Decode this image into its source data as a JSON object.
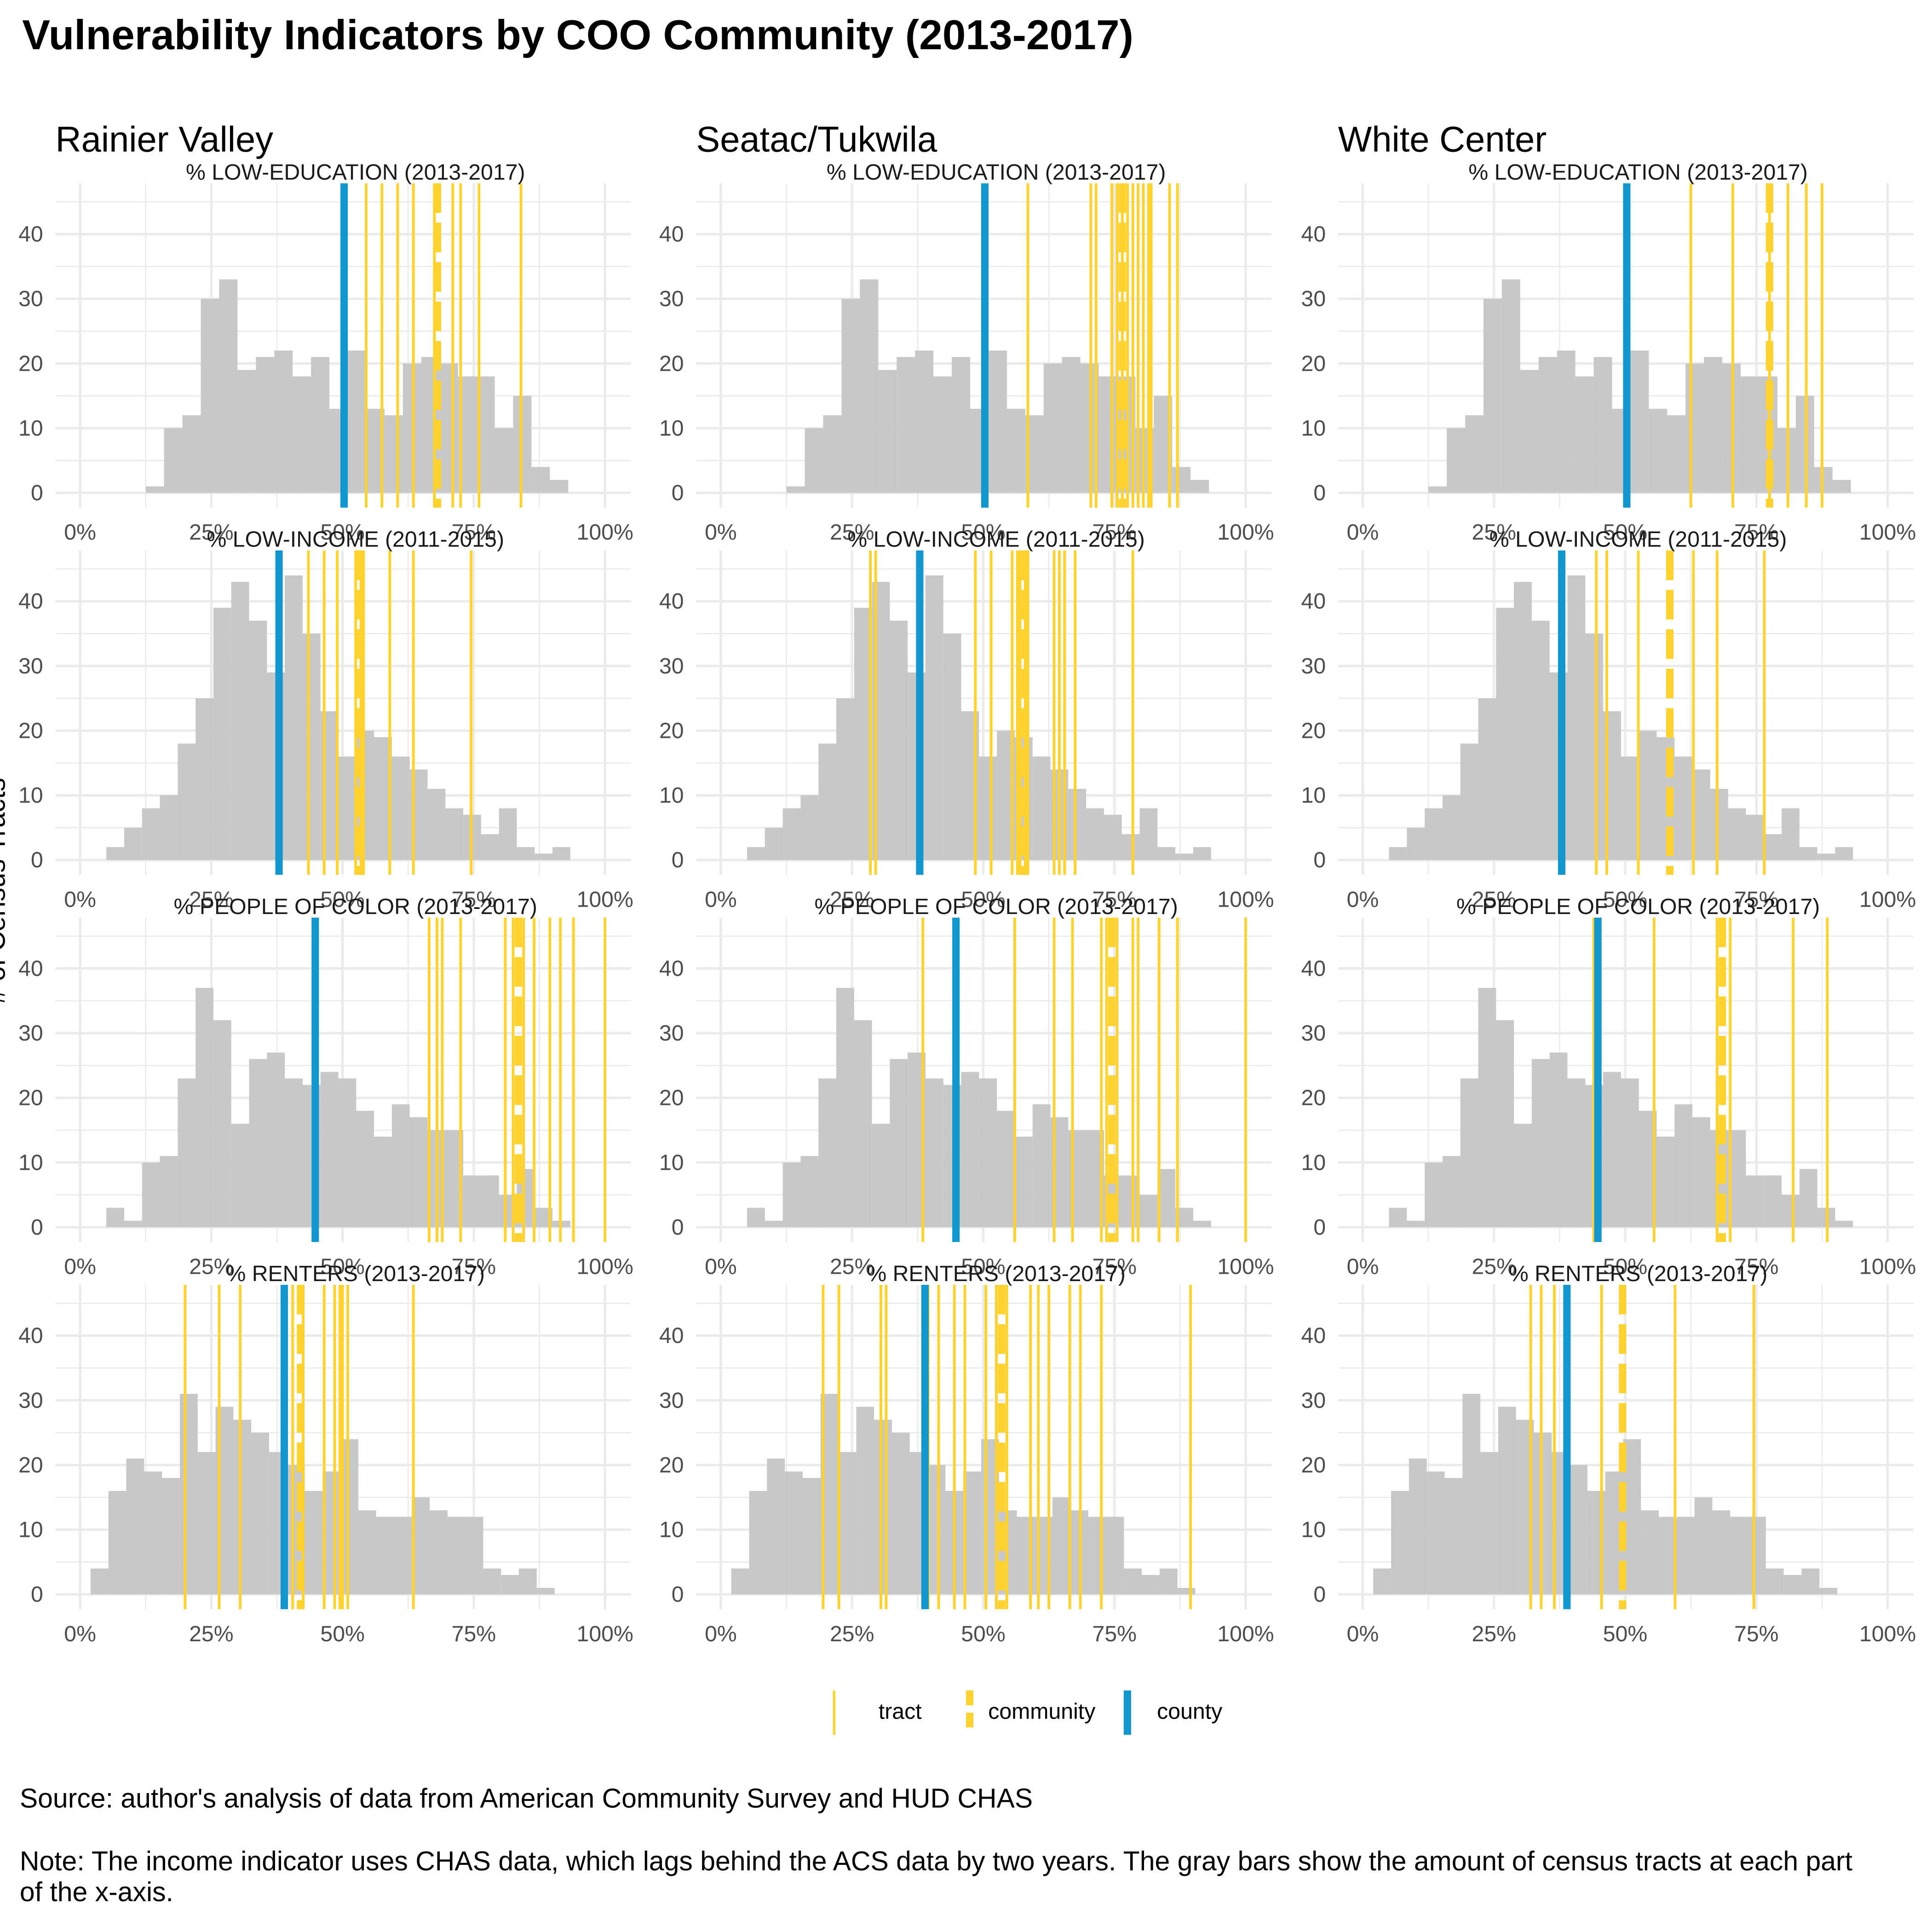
{
  "title": "Vulnerability Indicators by COO Community (2013-2017)",
  "ylabel": "# of Census Tracts",
  "communities": [
    "Rainier Valley",
    "Seatac/Tukwila",
    "White Center"
  ],
  "legend": [
    {
      "key": "tract",
      "label": "tract",
      "color": "#FFD22E"
    },
    {
      "key": "community",
      "label": "community",
      "color": "#FFD22E"
    },
    {
      "key": "county",
      "label": "county",
      "color": "#1196CF"
    }
  ],
  "colors": {
    "histogram": "#C8C8C8",
    "tract": "#FFD22E",
    "community": "#FFD22E",
    "county": "#1196CF",
    "grid": "#EBEBEB",
    "tick_text": "#4D4D4D"
  },
  "source": "Source: author's analysis of data from American Community Survey and HUD CHAS",
  "note": "Note: The income indicator uses CHAS data, which lags behind the ACS data by two years. The gray bars show the amount of census tracts at each part of the x-axis.",
  "chart_data": {
    "type": "histogram-facet-grid",
    "xlim": [
      0,
      100
    ],
    "x_ticks": [
      "0%",
      "25%",
      "50%",
      "75%",
      "100%"
    ],
    "ylim": [
      0,
      45
    ],
    "y_ticks": [
      "0",
      "10",
      "20",
      "30",
      "40"
    ],
    "grid": true,
    "legend_position": "bottom",
    "rows": [
      {
        "indicator": "% LOW-EDUCATION (2013-2017)",
        "bins": {
          "start": 12.5,
          "width": 3.5,
          "counts": [
            1,
            10,
            12,
            30,
            33,
            19,
            21,
            22,
            18,
            21,
            13,
            22,
            13,
            12,
            20,
            21,
            20,
            18,
            18,
            10,
            15,
            4,
            2
          ]
        },
        "panels": [
          {
            "community": "Rainier Valley",
            "county": 50.3,
            "community_value": 68.1,
            "tracts": [
              54.5,
              57.5,
              60.5,
              63.5,
              67.5,
              71.0,
              72.5,
              76.0,
              84.0
            ]
          },
          {
            "community": "Seatac/Tukwila",
            "county": 50.3,
            "community_value": 76.5,
            "tracts": [
              58.5,
              70.5,
              71.5,
              74.5,
              75.5,
              76.5,
              77.5,
              78.5,
              79.5,
              80.5,
              81.5,
              82.0,
              85.5,
              87.0
            ]
          },
          {
            "community": "White Center",
            "county": 50.3,
            "community_value": 77.5,
            "tracts": [
              62.5,
              70.5,
              77.5,
              81.0,
              84.5,
              87.5
            ]
          }
        ]
      },
      {
        "indicator": "% LOW-INCOME (2011-2015)",
        "bins": {
          "start": 5,
          "width": 3.4,
          "counts": [
            2,
            5,
            8,
            10,
            18,
            25,
            39,
            43,
            37,
            29,
            44,
            35,
            23,
            16,
            20,
            19,
            16,
            14,
            11,
            8,
            7,
            4,
            8,
            2,
            1,
            2
          ]
        },
        "panels": [
          {
            "community": "Rainier Valley",
            "county": 37.9,
            "community_value": 53.0,
            "tracts": [
              37.5,
              43.5,
              46.5,
              49.0,
              52.5,
              53.5,
              54.0,
              59.0,
              63.5,
              74.5
            ]
          },
          {
            "community": "Seatac/Tukwila",
            "county": 37.9,
            "community_value": 57.5,
            "tracts": [
              28.5,
              29.5,
              37.5,
              48.5,
              51.5,
              55.5,
              56.5,
              57.0,
              58.0,
              58.5,
              63.5,
              64.5,
              65.5,
              67.5,
              78.5
            ]
          },
          {
            "community": "White Center",
            "county": 37.9,
            "community_value": 58.5,
            "tracts": [
              44.5,
              46.5,
              52.5,
              63.0,
              67.5,
              76.5
            ]
          }
        ]
      },
      {
        "indicator": "% PEOPLE OF COLOR (2013-2017)",
        "bins": {
          "start": 5,
          "width": 3.4,
          "counts": [
            3,
            1,
            10,
            11,
            23,
            37,
            32,
            16,
            26,
            27,
            23,
            22,
            24,
            23,
            18,
            14,
            19,
            17,
            15,
            15,
            8,
            8,
            5,
            9,
            3,
            1
          ]
        },
        "panels": [
          {
            "community": "Rainier Valley",
            "county": 44.8,
            "community_value": 83.5,
            "tracts": [
              66.5,
              68.0,
              69.0,
              72.5,
              81.0,
              82.5,
              84.5,
              86.5,
              89.5,
              91.5,
              94.0,
              100.0
            ]
          },
          {
            "community": "Seatac/Tukwila",
            "county": 44.8,
            "community_value": 74.5,
            "tracts": [
              38.5,
              56.0,
              63.5,
              67.0,
              72.5,
              73.5,
              75.5,
              78.5,
              79.5,
              83.5,
              87.0,
              100.0
            ]
          },
          {
            "community": "White Center",
            "county": 44.8,
            "community_value": 68.5,
            "tracts": [
              44.0,
              55.5,
              67.5,
              70.0,
              82.0,
              88.5
            ]
          }
        ]
      },
      {
        "indicator": "% RENTERS (2013-2017)",
        "bins": {
          "start": 2,
          "width": 3.4,
          "counts": [
            4,
            16,
            21,
            19,
            18,
            31,
            22,
            29,
            27,
            25,
            22,
            20,
            16,
            19,
            24,
            13,
            12,
            12,
            15,
            13,
            12,
            12,
            4,
            3,
            4,
            1
          ]
        },
        "panels": [
          {
            "community": "Rainier Valley",
            "county": 38.9,
            "community_value": 42.0,
            "tracts": [
              20.0,
              26.5,
              30.5,
              40.5,
              42.5,
              46.5,
              48.5,
              49.5,
              50.0,
              51.0,
              63.5
            ]
          },
          {
            "community": "Seatac/Tukwila",
            "county": 38.9,
            "community_value": 53.5,
            "tracts": [
              19.5,
              22.5,
              30.5,
              31.5,
              39.5,
              41.5,
              44.5,
              46.5,
              50.5,
              52.5,
              54.5,
              59.0,
              60.5,
              62.5,
              66.5,
              68.5,
              72.5,
              89.5
            ]
          },
          {
            "community": "White Center",
            "county": 38.9,
            "community_value": 49.5,
            "tracts": [
              32.0,
              34.0,
              36.5,
              45.5,
              59.5,
              74.5
            ]
          }
        ]
      }
    ]
  }
}
